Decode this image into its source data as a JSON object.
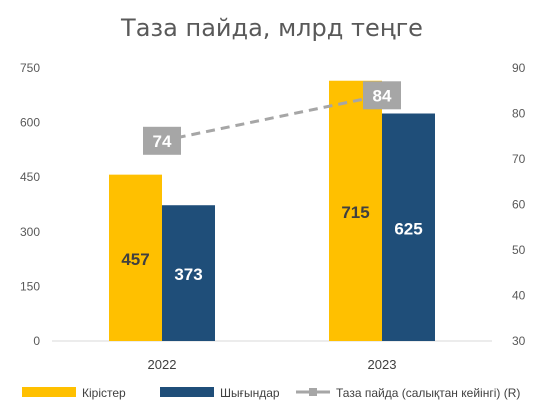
{
  "chart_data": {
    "type": "bar+line",
    "title": "Таза пайда, млрд теңге",
    "categories": [
      "2022",
      "2023"
    ],
    "series": [
      {
        "name": "Кірістер",
        "kind": "bar",
        "axis": "left",
        "color": "#FFC000",
        "values": [
          457,
          715
        ]
      },
      {
        "name": "Шығындар",
        "kind": "bar",
        "axis": "left",
        "color": "#1F4E79",
        "values": [
          373,
          625
        ]
      },
      {
        "name": "Таза пайда (салықтан кейінгі) (R)",
        "kind": "line",
        "axis": "right",
        "color": "#A6A6A6",
        "values": [
          74,
          84
        ]
      }
    ],
    "y_left": {
      "min": 0,
      "max": 750,
      "ticks": [
        "0",
        "150",
        "300",
        "450",
        "600",
        "750"
      ]
    },
    "y_right": {
      "min": 30,
      "max": 90,
      "ticks": [
        "30",
        "40",
        "50",
        "60",
        "70",
        "80",
        "90"
      ]
    },
    "grid": false,
    "legend_position": "bottom"
  }
}
